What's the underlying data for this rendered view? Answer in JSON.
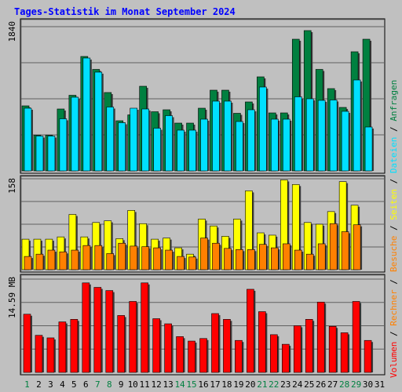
{
  "title": "Tages-Statistik im Monat September 2024",
  "colors": {
    "background": "#c0c0c0",
    "title": "#0000ff",
    "anfragen": "#008040",
    "dateien": "#00e0ff",
    "seiten": "#ffff00",
    "besuche": "#ff8000",
    "volumen": "#ff0000",
    "weekend_label": "#008040",
    "weekday_label": "#000000",
    "grid": "#606060"
  },
  "chart_data": [
    {
      "type": "bar",
      "name": "hits-files",
      "ymax_label": "1840",
      "ylim": [
        0,
        1840
      ],
      "x": [
        1,
        2,
        3,
        4,
        5,
        6,
        7,
        8,
        9,
        10,
        11,
        12,
        13,
        14,
        15,
        16,
        17,
        18,
        19,
        20,
        21,
        22,
        23,
        24,
        25,
        26,
        27,
        28,
        29,
        30,
        31
      ],
      "series": [
        {
          "name": "Anfragen",
          "values": [
            830,
            455,
            455,
            790,
            965,
            1460,
            1295,
            1000,
            640,
            715,
            1080,
            755,
            780,
            610,
            610,
            800,
            1030,
            1030,
            735,
            880,
            1200,
            740,
            740,
            1680,
            1790,
            1295,
            1050,
            810,
            1520,
            1680,
            0
          ]
        },
        {
          "name": "Dateien",
          "values": [
            800,
            445,
            445,
            665,
            940,
            1440,
            1260,
            815,
            615,
            800,
            790,
            545,
            705,
            520,
            520,
            660,
            890,
            890,
            630,
            780,
            1070,
            660,
            660,
            945,
            920,
            900,
            905,
            760,
            1160,
            560,
            0
          ]
        }
      ]
    },
    {
      "type": "bar",
      "name": "pages-visits",
      "ymax_label": "158",
      "ylim": [
        0,
        158
      ],
      "x": [
        1,
        2,
        3,
        4,
        5,
        6,
        7,
        8,
        9,
        10,
        11,
        12,
        13,
        14,
        15,
        16,
        17,
        18,
        19,
        20,
        21,
        22,
        23,
        24,
        25,
        26,
        27,
        28,
        29,
        30,
        31
      ],
      "series": [
        {
          "name": "Seiten",
          "values": [
            53,
            53,
            53,
            57,
            96,
            57,
            82,
            85,
            54,
            103,
            80,
            53,
            55,
            38,
            27,
            88,
            76,
            58,
            88,
            137,
            64,
            60,
            156,
            148,
            82,
            79,
            101,
            153,
            112,
            0,
            0
          ]
        },
        {
          "name": "Besuche",
          "values": [
            23,
            27,
            34,
            31,
            34,
            42,
            42,
            28,
            46,
            41,
            40,
            38,
            34,
            23,
            22,
            55,
            46,
            37,
            35,
            35,
            44,
            38,
            45,
            34,
            27,
            45,
            80,
            66,
            78,
            0,
            0
          ]
        }
      ]
    },
    {
      "type": "bar",
      "name": "volume",
      "ymax_label": "14.59 MB",
      "ylim": [
        0,
        14.59
      ],
      "x": [
        1,
        2,
        3,
        4,
        5,
        6,
        7,
        8,
        9,
        10,
        11,
        12,
        13,
        14,
        15,
        16,
        17,
        18,
        19,
        20,
        21,
        22,
        23,
        24,
        25,
        26,
        27,
        28,
        29,
        30,
        31
      ],
      "series": [
        {
          "name": "Volumen",
          "values": [
            9.1,
            5.8,
            5.4,
            7.9,
            8.3,
            14.0,
            13.3,
            12.8,
            8.9,
            11.1,
            14.0,
            8.4,
            7.6,
            5.6,
            4.9,
            5.3,
            9.2,
            8.3,
            5.0,
            13.0,
            9.5,
            5.9,
            4.4,
            7.3,
            8.3,
            11.0,
            7.2,
            6.2,
            11.1,
            5.0,
            0
          ]
        }
      ]
    }
  ],
  "days": {
    "labels": [
      "1",
      "2",
      "3",
      "4",
      "5",
      "6",
      "7",
      "8",
      "9",
      "10",
      "11",
      "12",
      "13",
      "14",
      "15",
      "16",
      "17",
      "18",
      "19",
      "20",
      "21",
      "22",
      "23",
      "24",
      "25",
      "26",
      "27",
      "28",
      "29",
      "30",
      "31"
    ],
    "weekend": [
      1,
      7,
      8,
      14,
      15,
      21,
      22,
      28,
      29
    ]
  },
  "legend_right_top": [
    {
      "text": "Dateien",
      "color_key": "dateien"
    },
    {
      "text": "/",
      "color_key": "weekday_label"
    },
    {
      "text": "Anfragen",
      "color_key": "anfragen"
    }
  ],
  "legend_right_middle": [
    {
      "text": "Besuche",
      "color_key": "besuche"
    },
    {
      "text": "/",
      "color_key": "weekday_label"
    },
    {
      "text": "Seiten",
      "color_key": "seiten"
    },
    {
      "text": "/",
      "color_key": "weekday_label"
    }
  ],
  "legend_right_bottom": [
    {
      "text": "Volumen",
      "color_key": "volumen"
    },
    {
      "text": "/",
      "color_key": "weekday_label"
    },
    {
      "text": "Rechner",
      "color_key": "besuche"
    },
    {
      "text": "/",
      "color_key": "weekday_label"
    }
  ]
}
